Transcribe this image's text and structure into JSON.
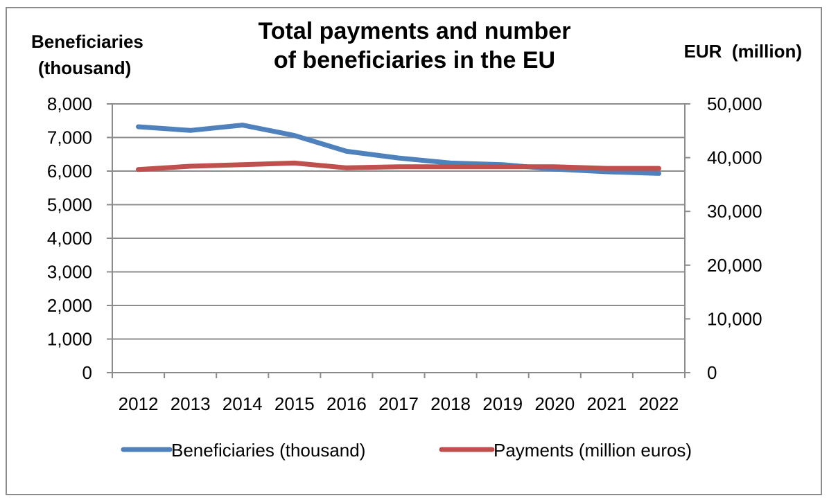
{
  "chart_data": {
    "type": "line",
    "title_lines": [
      "Total payments and number",
      "of beneficiaries in the EU"
    ],
    "ylabel_left_lines": [
      "Beneficiaries",
      "(thousand)"
    ],
    "ylabel_right": "EUR  (million)",
    "categories": [
      "2012",
      "2013",
      "2014",
      "2015",
      "2016",
      "2017",
      "2018",
      "2019",
      "2020",
      "2021",
      "2022"
    ],
    "y_left": {
      "ylim": [
        0,
        8000
      ],
      "ticks": [
        0,
        1000,
        2000,
        3000,
        4000,
        5000,
        6000,
        7000,
        8000
      ],
      "tick_labels": [
        "0",
        "1,000",
        "2,000",
        "3,000",
        "4,000",
        "5,000",
        "6,000",
        "7,000",
        "8,000"
      ]
    },
    "y_right": {
      "ylim": [
        0,
        50000
      ],
      "ticks": [
        0,
        10000,
        20000,
        30000,
        40000,
        50000
      ],
      "tick_labels": [
        "0",
        "10,000",
        "20,000",
        "30,000",
        "40,000",
        "50,000"
      ]
    },
    "grid": true,
    "legend_position": "bottom",
    "series": [
      {
        "name": "Beneficiaries (thousand)",
        "axis": "left",
        "color": "#4f81bd",
        "values": [
          7320,
          7210,
          7370,
          7060,
          6590,
          6390,
          6240,
          6190,
          6060,
          5980,
          5930
        ]
      },
      {
        "name": "Payments (million euros)",
        "axis": "right",
        "color": "#c0504d",
        "values": [
          37800,
          38400,
          38700,
          39000,
          38100,
          38300,
          38300,
          38300,
          38300,
          38000,
          38000
        ]
      }
    ]
  }
}
